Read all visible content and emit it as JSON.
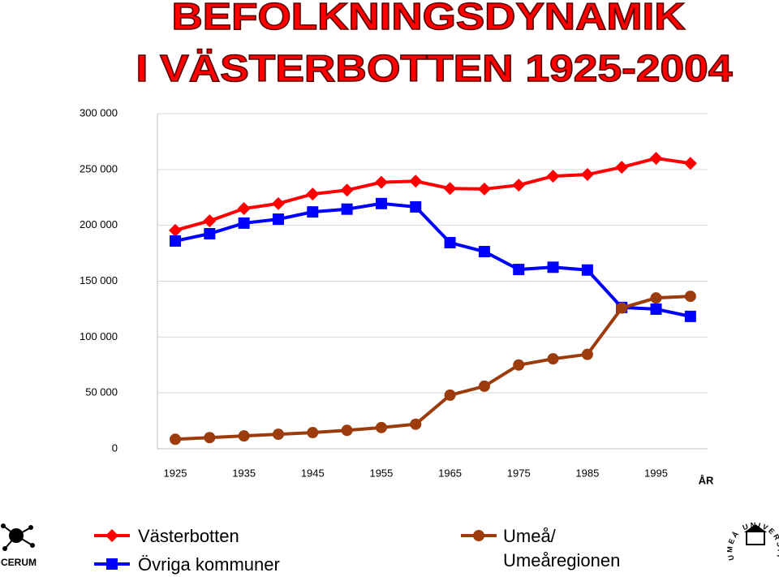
{
  "chart_data": {
    "type": "line",
    "title_lines": [
      "BEFOLKNINGSDYNAMIK",
      "I VÄSTERBOTTEN 1925-2004"
    ],
    "x_label": "ÅR",
    "x": [
      1925,
      1930,
      1935,
      1940,
      1945,
      1950,
      1955,
      1960,
      1965,
      1970,
      1975,
      1980,
      1985,
      1990,
      1995,
      2000
    ],
    "xlim": [
      1922.4,
      2002.5
    ],
    "xticks": [
      1925,
      1935,
      1945,
      1955,
      1965,
      1975,
      1985,
      1995
    ],
    "ylim": [
      0,
      300000
    ],
    "yticks": [
      0,
      {
        "value": 50000,
        "label": "50 000"
      },
      {
        "value": 100000,
        "label": "100 000"
      },
      {
        "value": 150000,
        "label": "150 000"
      },
      {
        "value": 200000,
        "label": "200 000"
      },
      {
        "value": 250000,
        "label": "250 000"
      },
      {
        "value": 300000,
        "label": "300 000"
      }
    ],
    "grid": true,
    "series": [
      {
        "name": "Västerbotten",
        "color": "#ff0000",
        "marker": "diamond",
        "values": [
          195500,
          204000,
          215000,
          219500,
          228000,
          231500,
          238500,
          239500,
          233000,
          232500,
          236000,
          244000,
          245500,
          252000,
          260000,
          255500
        ]
      },
      {
        "name": "Övriga kommuner",
        "color": "#0000ff",
        "marker": "square",
        "values": [
          186000,
          192500,
          202000,
          205500,
          212000,
          214500,
          219500,
          216500,
          184500,
          176500,
          160500,
          162500,
          160000,
          126500,
          125000,
          118500
        ]
      },
      {
        "name": "Umeå/ Umeåregionen",
        "color": "#9c3b0c",
        "marker": "circle",
        "values": [
          8500,
          10000,
          11500,
          13000,
          14500,
          16500,
          19000,
          22000,
          48000,
          56000,
          75000,
          80500,
          84500,
          126000,
          135000,
          136500
        ]
      }
    ]
  },
  "logos": [
    "CERUM",
    "UMEÅ UNIVERSITET"
  ]
}
